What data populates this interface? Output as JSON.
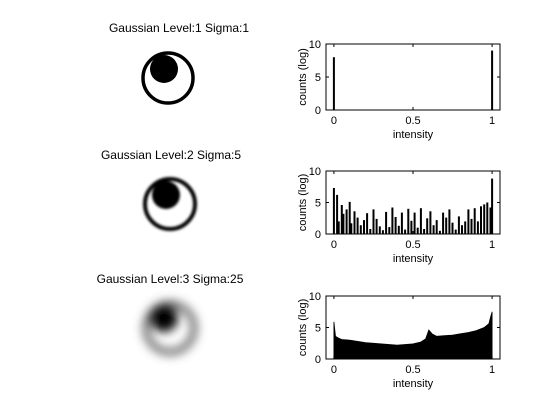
{
  "figure": {
    "rows": [
      {
        "image_title": "Gaussian Level:1 Sigma:1",
        "sigma": 1,
        "histogram": {
          "type": "bar",
          "xlabel": "intensity",
          "ylabel": "counts (log)",
          "xlim": [
            -0.05,
            1.05
          ],
          "ylim": [
            0,
            10
          ],
          "xticks": [
            "0",
            "0.5",
            "1"
          ],
          "yticks": [
            "0",
            "5",
            "10"
          ],
          "x": [
            0,
            1
          ],
          "values": [
            8,
            9
          ]
        }
      },
      {
        "image_title": "Gaussian Level:2 Sigma:5",
        "sigma": 5,
        "histogram": {
          "type": "bar",
          "xlabel": "intensity",
          "ylabel": "counts (log)",
          "xlim": [
            -0.05,
            1.05
          ],
          "ylim": [
            0,
            10
          ],
          "xticks": [
            "0",
            "0.5",
            "1"
          ],
          "yticks": [
            "0",
            "5",
            "10"
          ],
          "x": [
            0.0,
            0.02,
            0.03,
            0.05,
            0.06,
            0.08,
            0.1,
            0.11,
            0.13,
            0.15,
            0.17,
            0.19,
            0.21,
            0.23,
            0.25,
            0.27,
            0.29,
            0.31,
            0.33,
            0.35,
            0.37,
            0.39,
            0.41,
            0.43,
            0.45,
            0.47,
            0.49,
            0.51,
            0.53,
            0.55,
            0.57,
            0.59,
            0.61,
            0.63,
            0.65,
            0.67,
            0.69,
            0.71,
            0.73,
            0.75,
            0.77,
            0.79,
            0.81,
            0.83,
            0.85,
            0.87,
            0.89,
            0.91,
            0.93,
            0.95,
            0.97,
            0.99,
            1.0
          ],
          "values": [
            7.3,
            6.2,
            2.0,
            4.6,
            3.2,
            3.9,
            5.1,
            1.7,
            3.6,
            2.6,
            1.4,
            2.2,
            3.3,
            0.8,
            3.9,
            2.4,
            1.2,
            0.6,
            3.5,
            1.1,
            4.2,
            2.7,
            1.3,
            3.4,
            0.7,
            4.0,
            2.1,
            3.4,
            1.0,
            4.1,
            0.8,
            2.5,
            3.6,
            1.4,
            2.2,
            0.5,
            3.4,
            2.6,
            3.9,
            1.8,
            0.7,
            2.8,
            1.4,
            2.0,
            3.9,
            2.4,
            4.1,
            2.0,
            4.4,
            4.7,
            5.0,
            4.2,
            8.8
          ]
        }
      },
      {
        "image_title": "Gaussian Level:3 Sigma:25",
        "sigma": 25,
        "histogram": {
          "type": "area",
          "xlabel": "intensity",
          "ylabel": "counts (log)",
          "xlim": [
            -0.05,
            1.05
          ],
          "ylim": [
            0,
            10
          ],
          "xticks": [
            "0",
            "0.5",
            "1"
          ],
          "yticks": [
            "0",
            "5",
            "10"
          ],
          "x": [
            0.0,
            0.01,
            0.03,
            0.05,
            0.1,
            0.15,
            0.2,
            0.25,
            0.3,
            0.35,
            0.4,
            0.45,
            0.5,
            0.55,
            0.58,
            0.6,
            0.62,
            0.65,
            0.7,
            0.75,
            0.8,
            0.85,
            0.9,
            0.95,
            0.98,
            0.99,
            1.0
          ],
          "values": [
            5.9,
            3.6,
            3.3,
            3.1,
            3.0,
            2.8,
            2.6,
            2.5,
            2.4,
            2.3,
            2.2,
            2.3,
            2.4,
            2.7,
            3.2,
            4.6,
            4.0,
            3.6,
            3.7,
            3.8,
            4.0,
            4.2,
            4.5,
            5.0,
            5.6,
            6.6,
            7.5
          ]
        }
      }
    ]
  }
}
